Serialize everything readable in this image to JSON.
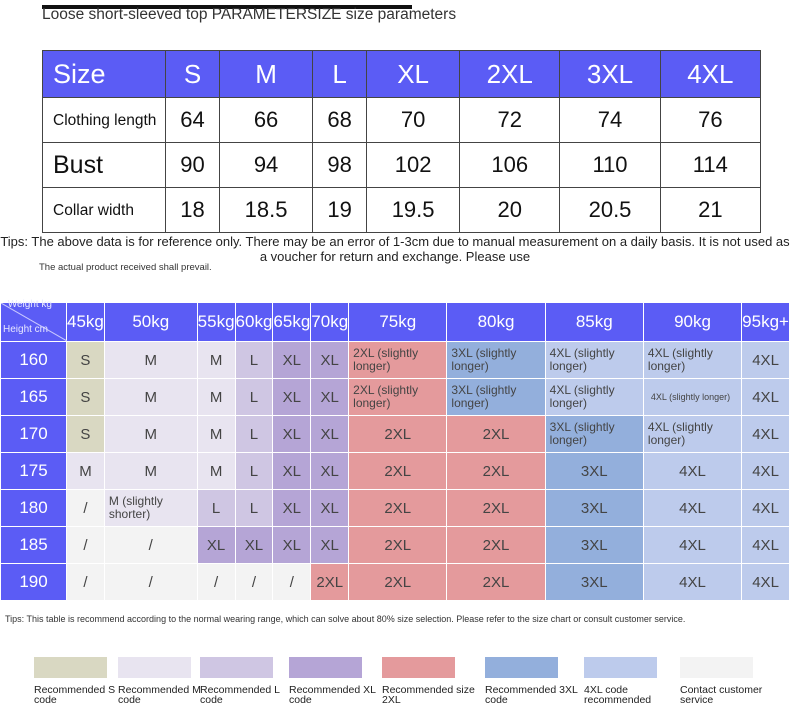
{
  "title": "Loose short-sleeved top PARAMETERSIZE size parameters",
  "size_table": {
    "header_label": "Size",
    "sizes": [
      "S",
      "M",
      "L",
      "XL",
      "2XL",
      "3XL",
      "4XL"
    ],
    "rows": [
      {
        "label": "Clothing length",
        "values": [
          "64",
          "66",
          "68",
          "70",
          "72",
          "74",
          "76"
        ]
      },
      {
        "label": "Bust",
        "values": [
          "90",
          "94",
          "98",
          "102",
          "106",
          "110",
          "114"
        ]
      },
      {
        "label": "Collar width",
        "values": [
          "18",
          "18.5",
          "19",
          "19.5",
          "20",
          "20.5",
          "21"
        ]
      }
    ]
  },
  "tip1": "Tips: The above data is for reference only. There may be an error of 1-3cm due to manual measurement on a daily basis. It is not used as a voucher for return and exchange. Please use",
  "tip1b": "The actual product received shall prevail.",
  "fit_table": {
    "corner_weight": "Weight kg",
    "corner_height": "Height cm",
    "weights": [
      "45kg",
      "50kg",
      "55kg",
      "60kg",
      "65kg",
      "70kg",
      "75kg",
      "80kg",
      "85kg",
      "90kg",
      "95kg+"
    ],
    "rows": [
      {
        "height": "160",
        "cells": [
          "S",
          "M",
          "M",
          "L",
          "XL",
          "XL",
          "2XL (slightly longer)",
          "3XL (slightly longer)",
          "4XL (slightly longer)",
          "4XL (slightly longer)",
          "4XL"
        ]
      },
      {
        "height": "165",
        "cells": [
          "S",
          "M",
          "M",
          "L",
          "XL",
          "XL",
          "2XL (slightly longer)",
          "3XL (slightly longer)",
          "4XL (slightly longer)",
          "4XL (slightly longer)",
          "4XL"
        ]
      },
      {
        "height": "170",
        "cells": [
          "S",
          "M",
          "M",
          "L",
          "XL",
          "XL",
          "2XL",
          "2XL",
          "3XL (slightly longer)",
          "4XL (slightly longer)",
          "4XL"
        ]
      },
      {
        "height": "175",
        "cells": [
          "M",
          "M",
          "M",
          "L",
          "XL",
          "XL",
          "2XL",
          "2XL",
          "3XL",
          "4XL",
          "4XL"
        ]
      },
      {
        "height": "180",
        "cells": [
          "/",
          "M (slightly shorter)",
          "L",
          "L",
          "XL",
          "XL",
          "2XL",
          "2XL",
          "3XL",
          "4XL",
          "4XL"
        ]
      },
      {
        "height": "185",
        "cells": [
          "/",
          "/",
          "XL",
          "XL",
          "XL",
          "XL",
          "2XL",
          "2XL",
          "3XL",
          "4XL",
          "4XL"
        ]
      },
      {
        "height": "190",
        "cells": [
          "/",
          "/",
          "/",
          "/",
          "/",
          "2XL",
          "2XL",
          "2XL",
          "3XL",
          "4XL",
          "4XL"
        ]
      }
    ],
    "colors": [
      [
        "S",
        "S",
        "S",
        "M",
        "NA",
        "NA",
        "NA"
      ],
      [
        "M",
        "M",
        "M",
        "M",
        "M",
        "NA",
        "NA"
      ],
      [
        "M",
        "M",
        "M",
        "M",
        "L",
        "XL",
        "NA"
      ],
      [
        "L",
        "L",
        "L",
        "L",
        "L",
        "XL",
        "NA"
      ],
      [
        "XL",
        "XL",
        "XL",
        "XL",
        "XL",
        "XL",
        "NA"
      ],
      [
        "XL",
        "XL",
        "XL",
        "XL",
        "XL",
        "XL",
        "2XL"
      ],
      [
        "2XL",
        "2XL",
        "2XL",
        "2XL",
        "2XL",
        "2XL",
        "2XL"
      ],
      [
        "3XL",
        "3XL",
        "2XL",
        "2XL",
        "2XL",
        "2XL",
        "2XL"
      ],
      [
        "4XL",
        "4XL",
        "3XL",
        "3XL",
        "3XL",
        "3XL",
        "3XL"
      ],
      [
        "4XL",
        "4XL",
        "4XL",
        "4XL",
        "4XL",
        "4XL",
        "4XL"
      ],
      [
        "4XL",
        "4XL",
        "4XL",
        "4XL",
        "4XL",
        "4XL",
        "4XL"
      ]
    ]
  },
  "tip2": "Tips: This table is recommend according to the normal wearing range, which can solve about 80% size selection. Please refer to the size chart or consult customer service.",
  "legend": [
    {
      "label": "Recommended S code",
      "color": "#d9d8c2"
    },
    {
      "label": "Recommended M code",
      "color": "#e8e4f0"
    },
    {
      "label": "Recommended L code",
      "color": "#cfc6e3"
    },
    {
      "label": "Recommended XL code",
      "color": "#b5a5d6"
    },
    {
      "label": "Recommended size 2XL",
      "color": "#e49a9c"
    },
    {
      "label": "Recommended 3XL code",
      "color": "#93afdc"
    },
    {
      "label": "4XL code recommended",
      "color": "#bdcbec"
    },
    {
      "label": "Contact customer service",
      "color": "#f3f3f3"
    }
  ],
  "accent_color": "#5b5cf5"
}
